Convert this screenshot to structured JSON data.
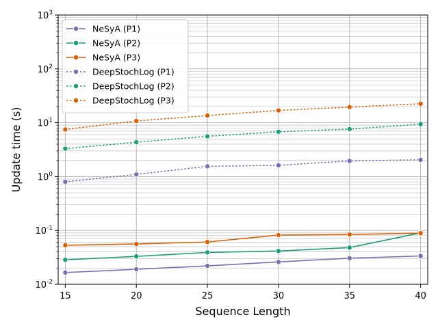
{
  "chart_data": {
    "type": "line",
    "xlabel": "Sequence Length",
    "ylabel": "Update time (s)",
    "x": [
      15,
      20,
      25,
      30,
      35,
      40
    ],
    "xlim": [
      14.5,
      40.5
    ],
    "yscale": "log",
    "ylim": [
      0.01,
      1000
    ],
    "grid": true,
    "legend_position": "top-left",
    "x_tick_labels": [
      "15",
      "20",
      "25",
      "30",
      "35",
      "40"
    ],
    "y_ticks": [
      {
        "exp": "-2",
        "value": 0.01
      },
      {
        "exp": "-1",
        "value": 0.1
      },
      {
        "exp": "0",
        "value": 1
      },
      {
        "exp": "1",
        "value": 10
      },
      {
        "exp": "2",
        "value": 100
      },
      {
        "exp": "3",
        "value": 1000
      }
    ],
    "y_tick_base": "10",
    "series": [
      {
        "name": "NeSyA (P1)",
        "color": "#7570b3",
        "dash": "solid",
        "values": [
          0.0165,
          0.019,
          0.022,
          0.026,
          0.0305,
          0.0335
        ]
      },
      {
        "name": "NeSyA (P2)",
        "color": "#1b9e77",
        "dash": "solid",
        "values": [
          0.0285,
          0.033,
          0.039,
          0.0415,
          0.048,
          0.09
        ]
      },
      {
        "name": "NeSyA (P3)",
        "color": "#d95f02",
        "dash": "solid",
        "values": [
          0.053,
          0.056,
          0.061,
          0.082,
          0.084,
          0.089
        ]
      },
      {
        "name": "DeepStochLog (P1)",
        "color": "#7570b3",
        "dash": "dotted",
        "values": [
          0.8,
          1.1,
          1.55,
          1.62,
          1.95,
          2.05
        ]
      },
      {
        "name": "DeepStochLog (P2)",
        "color": "#1b9e77",
        "dash": "dotted",
        "values": [
          3.3,
          4.35,
          5.6,
          6.8,
          7.6,
          9.4
        ]
      },
      {
        "name": "DeepStochLog (P3)",
        "color": "#d95f02",
        "dash": "dotted",
        "values": [
          7.5,
          10.8,
          13.6,
          16.9,
          19.5,
          22.5
        ]
      }
    ]
  }
}
